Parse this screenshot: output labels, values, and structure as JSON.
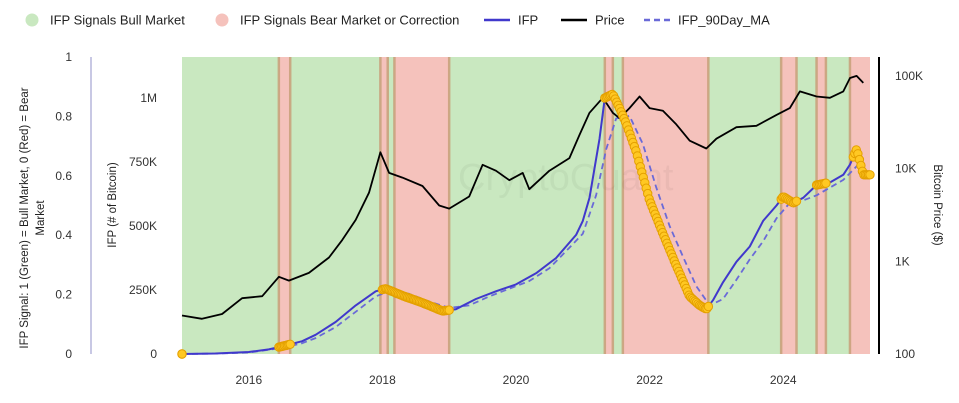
{
  "legend": {
    "bull": "IFP Signals Bull Market",
    "bear": "IFP Signals Bear Market or Correction",
    "ifp": "IFP",
    "price": "Price",
    "ma": "IFP_90Day_MA"
  },
  "watermark": "CryptoQuant",
  "colors": {
    "bull_fill": "#c9e8c0",
    "bear_fill": "#f5c2bc",
    "boundary": "#c8a07a",
    "ifp_line": "#4038cc",
    "ma_line": "#6a6ad8",
    "price_line": "#000000",
    "marker_fill": "#ffc823",
    "marker_stroke": "#e4a000",
    "axis_left_line": "#c8c8e4"
  },
  "chart_data": {
    "type": "line",
    "xlabel": "",
    "x_ticks": [
      "2016",
      "2018",
      "2020",
      "2022",
      "2024"
    ],
    "xlim": [
      2015.0,
      2025.3
    ],
    "axes": {
      "signal": {
        "title": "IFP Signal: 1 (Green) = Bull Market, 0 (Red) = Bear Market",
        "ticks": [
          "0",
          "0.2",
          "0.4",
          "0.6",
          "0.8",
          "1"
        ],
        "ylim": [
          0,
          1
        ]
      },
      "ifp": {
        "title": "IFP (# of Bitcoin)",
        "ticks": [
          "0",
          "250K",
          "500K",
          "750K",
          "1M"
        ],
        "ylim": [
          0,
          1160000
        ]
      },
      "price": {
        "title": "Bitcoin Price ($)",
        "ticks": [
          "100",
          "1K",
          "10K",
          "100K"
        ],
        "scale": "log",
        "ylim": [
          100,
          160000
        ]
      }
    },
    "bear_periods": [
      [
        2016.45,
        2016.62
      ],
      [
        2017.97,
        2018.08
      ],
      [
        2018.18,
        2019.0
      ],
      [
        2021.33,
        2021.45
      ],
      [
        2021.6,
        2022.88
      ],
      [
        2023.97,
        2024.2
      ],
      [
        2024.5,
        2024.64
      ],
      [
        2025.0,
        2025.3
      ]
    ],
    "series": [
      {
        "name": "IFP",
        "x": [
          2015.0,
          2015.5,
          2016.0,
          2016.3,
          2016.5,
          2016.8,
          2017.0,
          2017.3,
          2017.6,
          2017.9,
          2018.05,
          2018.3,
          2018.6,
          2018.9,
          2019.1,
          2019.4,
          2019.7,
          2020.0,
          2020.3,
          2020.6,
          2020.9,
          2021.0,
          2021.1,
          2021.25,
          2021.33,
          2021.45,
          2021.55,
          2021.65,
          2021.8,
          2022.0,
          2022.2,
          2022.4,
          2022.6,
          2022.75,
          2022.85,
          2022.95,
          2023.1,
          2023.3,
          2023.5,
          2023.7,
          2023.9,
          2024.0,
          2024.15,
          2024.3,
          2024.5,
          2024.7,
          2024.9,
          2025.0,
          2025.1,
          2025.2
        ],
        "values": [
          0,
          2000,
          8000,
          18000,
          30000,
          50000,
          75000,
          125000,
          190000,
          245000,
          255000,
          228000,
          200000,
          168000,
          175000,
          215000,
          245000,
          272000,
          315000,
          375000,
          465000,
          520000,
          610000,
          840000,
          1000000,
          1015000,
          960000,
          900000,
          790000,
          600000,
          470000,
          345000,
          225000,
          190000,
          175000,
          210000,
          280000,
          360000,
          420000,
          520000,
          580000,
          615000,
          590000,
          610000,
          660000,
          670000,
          700000,
          740000,
          800000,
          700000
        ]
      },
      {
        "name": "IFP_90Day_MA",
        "x": [
          2015.0,
          2015.5,
          2016.0,
          2016.5,
          2016.8,
          2017.0,
          2017.3,
          2017.6,
          2017.9,
          2018.1,
          2018.4,
          2018.7,
          2019.0,
          2019.3,
          2019.6,
          2019.9,
          2020.2,
          2020.5,
          2020.8,
          2021.0,
          2021.2,
          2021.35,
          2021.5,
          2021.7,
          2021.9,
          2022.1,
          2022.3,
          2022.5,
          2022.7,
          2022.9,
          2023.1,
          2023.3,
          2023.5,
          2023.7,
          2023.9,
          2024.1,
          2024.3,
          2024.5,
          2024.7,
          2024.9,
          2025.05,
          2025.2
        ],
        "values": [
          0,
          1500,
          6000,
          24000,
          42000,
          62000,
          105000,
          165000,
          225000,
          245000,
          235000,
          205000,
          180000,
          190000,
          225000,
          255000,
          285000,
          335000,
          415000,
          470000,
          620000,
          800000,
          920000,
          930000,
          820000,
          650000,
          500000,
          380000,
          265000,
          190000,
          215000,
          290000,
          370000,
          440000,
          530000,
          590000,
          600000,
          620000,
          650000,
          680000,
          720000,
          760000
        ]
      },
      {
        "name": "Price",
        "axis": "price",
        "x": [
          2015.0,
          2015.3,
          2015.6,
          2015.9,
          2016.2,
          2016.45,
          2016.6,
          2016.9,
          2017.2,
          2017.4,
          2017.6,
          2017.8,
          2017.97,
          2018.1,
          2018.3,
          2018.6,
          2018.85,
          2019.0,
          2019.3,
          2019.5,
          2019.7,
          2019.9,
          2020.1,
          2020.2,
          2020.5,
          2020.8,
          2020.95,
          2021.1,
          2021.3,
          2021.45,
          2021.55,
          2021.7,
          2021.85,
          2022.0,
          2022.2,
          2022.4,
          2022.6,
          2022.85,
          2023.0,
          2023.3,
          2023.6,
          2023.9,
          2024.1,
          2024.25,
          2024.5,
          2024.7,
          2024.9,
          2025.0,
          2025.1,
          2025.2
        ],
        "values": [
          260,
          240,
          270,
          400,
          420,
          680,
          620,
          750,
          1100,
          1700,
          2800,
          5500,
          15000,
          9000,
          8000,
          6500,
          4000,
          3700,
          5000,
          11000,
          9500,
          7500,
          9000,
          6000,
          9500,
          13000,
          23000,
          40000,
          58000,
          40000,
          35000,
          45000,
          60000,
          45000,
          42000,
          30000,
          20000,
          16500,
          21000,
          28000,
          29000,
          38000,
          45000,
          68000,
          60000,
          58000,
          68000,
          95000,
          100000,
          84000
        ]
      }
    ],
    "signal_markers": {
      "series": "IFP",
      "segments": [
        [
          2015.0,
          2015.0
        ],
        [
          2016.45,
          2016.62
        ],
        [
          2018.0,
          2019.0
        ],
        [
          2021.33,
          2022.88
        ],
        [
          2023.97,
          2024.2
        ],
        [
          2024.5,
          2024.64
        ],
        [
          2025.05,
          2025.3
        ]
      ]
    }
  }
}
